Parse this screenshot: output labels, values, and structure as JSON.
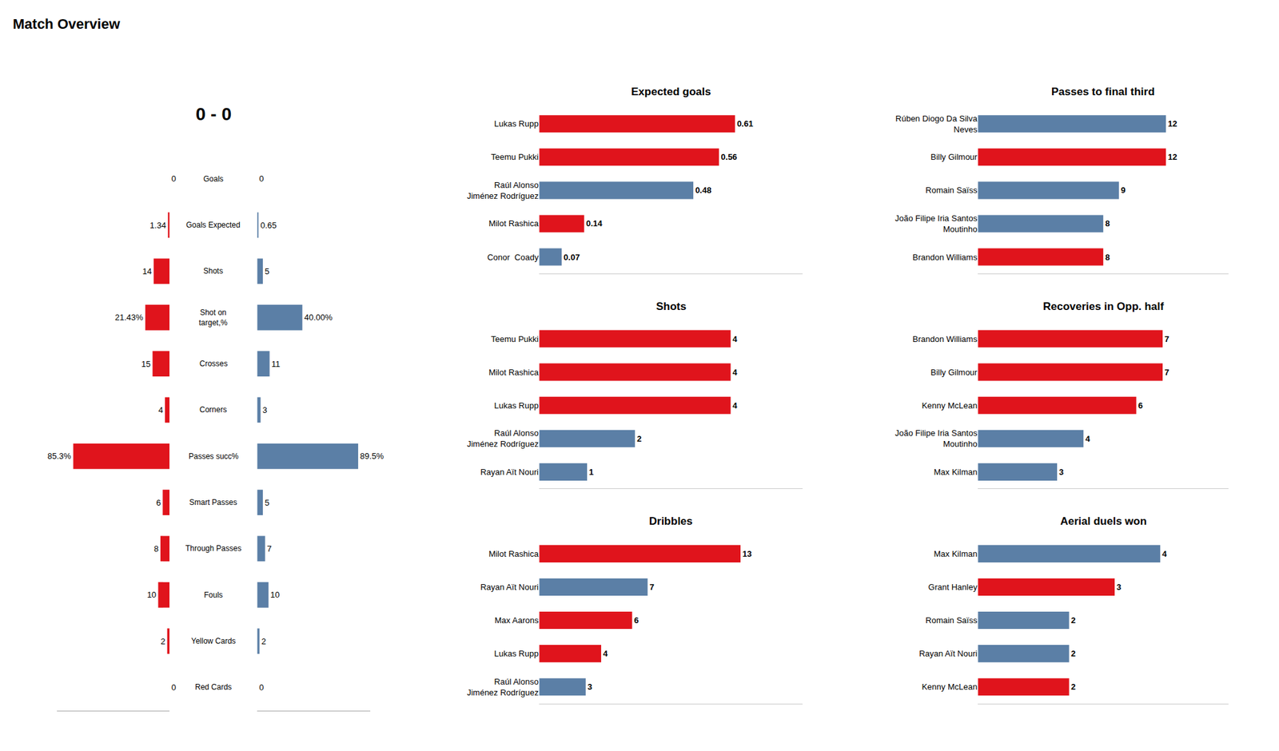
{
  "chart_data": [
    {
      "type": "diverging",
      "title": "Match Overview",
      "subtitle": "0 - 0",
      "categories": [
        "Goals",
        "Goals Expected",
        "Shots",
        "Shot on\ntarget,%",
        "Crosses",
        "Corners",
        "Passes succ%",
        "Smart Passes",
        "Through Passes",
        "Fouls",
        "Yellow Cards",
        "Red Cards"
      ],
      "series": [
        {
          "color": "#E0141C",
          "values": [
            0,
            1.34,
            14,
            21.43,
            15,
            4,
            85.3,
            6,
            8,
            10,
            2,
            0
          ],
          "value_labels": [
            "0",
            "1.34",
            "14",
            "21.43%",
            "15",
            "4",
            "85.3%",
            "6",
            "8",
            "10",
            "2",
            "0"
          ]
        },
        {
          "color": "#5B7FA6",
          "values": [
            0,
            0.65,
            5,
            40.0,
            11,
            3,
            89.5,
            5,
            7,
            10,
            2,
            0
          ],
          "value_labels": [
            "0",
            "0.65",
            "5",
            "40.00%",
            "11",
            "3",
            "89.5%",
            "5",
            "7",
            "10",
            "2",
            "0"
          ]
        }
      ],
      "xlim": [
        0,
        100
      ],
      "tick_labels": false,
      "grid": false,
      "data_labels": true
    },
    {
      "type": "bar",
      "orientation": "horizontal",
      "title": "Expected goals",
      "categories": [
        "Lukas Rupp",
        "Teemu Pukki",
        "Raúl Alonso\nJiménez Rodríguez",
        "Milot Rashica",
        "Conor  Coady"
      ],
      "values": [
        0.61,
        0.56,
        0.48,
        0.14,
        0.07
      ],
      "colors": [
        "#E0141C",
        "#E0141C",
        "#5B7FA6",
        "#E0141C",
        "#5B7FA6"
      ],
      "xlim": [
        0,
        0.82
      ],
      "tick_labels": "y",
      "grid": false,
      "data_labels": true
    },
    {
      "type": "bar",
      "orientation": "horizontal",
      "title": "Shots",
      "categories": [
        "Teemu Pukki",
        "Milot Rashica",
        "Lukas Rupp",
        "Raúl Alonso\nJiménez Rodríguez",
        "Rayan Aït Nouri"
      ],
      "values": [
        4,
        4,
        4,
        2,
        1
      ],
      "colors": [
        "#E0141C",
        "#E0141C",
        "#E0141C",
        "#5B7FA6",
        "#5B7FA6"
      ],
      "xlim": [
        0,
        5.5
      ],
      "tick_labels": "y",
      "grid": false,
      "data_labels": true
    },
    {
      "type": "bar",
      "orientation": "horizontal",
      "title": "Dribbles",
      "categories": [
        "Milot Rashica",
        "Rayan Aït Nouri",
        "Max Aarons",
        "Lukas Rupp",
        "Raúl Alonso\nJiménez Rodríguez"
      ],
      "values": [
        13,
        7,
        6,
        4,
        3
      ],
      "colors": [
        "#E0141C",
        "#5B7FA6",
        "#E0141C",
        "#E0141C",
        "#5B7FA6"
      ],
      "xlim": [
        0,
        17
      ],
      "tick_labels": "y",
      "grid": false,
      "data_labels": true
    },
    {
      "type": "bar",
      "orientation": "horizontal",
      "title": "Passes to final third",
      "categories": [
        "Rúben Diogo Da Silva\nNeves",
        "Billy Gilmour",
        "Romain Saïss",
        "João Filipe Iria Santos\nMoutinho",
        "Brandon Williams"
      ],
      "values": [
        12,
        12,
        9,
        8,
        8
      ],
      "colors": [
        "#5B7FA6",
        "#E0141C",
        "#5B7FA6",
        "#5B7FA6",
        "#E0141C"
      ],
      "xlim": [
        0,
        16
      ],
      "tick_labels": "y",
      "grid": false,
      "data_labels": true
    },
    {
      "type": "bar",
      "orientation": "horizontal",
      "title": "Recoveries in Opp. half",
      "categories": [
        "Brandon Williams",
        "Billy Gilmour",
        "Kenny McLean",
        "João Filipe Iria Santos\nMoutinho",
        "Max Kilman"
      ],
      "values": [
        7,
        7,
        6,
        4,
        3
      ],
      "colors": [
        "#E0141C",
        "#E0141C",
        "#E0141C",
        "#5B7FA6",
        "#5B7FA6"
      ],
      "xlim": [
        0,
        9.5
      ],
      "tick_labels": "y",
      "grid": false,
      "data_labels": true
    },
    {
      "type": "bar",
      "orientation": "horizontal",
      "title": "Aerial duels won",
      "categories": [
        "Max Kilman",
        "Grant Hanley",
        "Romain Saïss",
        "Rayan Aït Nouri",
        "Kenny McLean"
      ],
      "values": [
        4,
        3,
        2,
        2,
        2
      ],
      "colors": [
        "#5B7FA6",
        "#E0141C",
        "#5B7FA6",
        "#5B7FA6",
        "#E0141C"
      ],
      "xlim": [
        0,
        5.5
      ],
      "tick_labels": "y",
      "grid": false,
      "data_labels": true
    }
  ]
}
